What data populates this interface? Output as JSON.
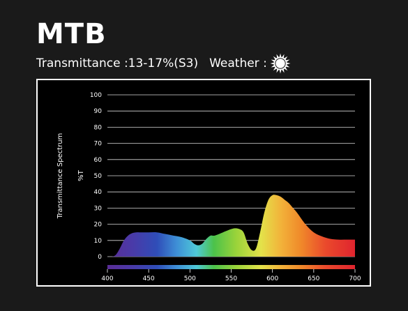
{
  "header": {
    "title": "MTB",
    "transmittance_label": "Transmittance :13-17%(S3)",
    "weather_label": "Weather :"
  },
  "icons": {
    "weather": "sun-icon"
  },
  "colors": {
    "background": "#1a1a1a",
    "panel": "#000000",
    "border": "#ffffff"
  },
  "chart_data": {
    "type": "area",
    "ylabel": "Transmittance Spectrum",
    "yunit": "%T",
    "xlim": [
      400,
      700
    ],
    "ylim": [
      0,
      100
    ],
    "yticks": [
      0,
      10,
      20,
      30,
      40,
      50,
      60,
      70,
      80,
      90,
      100
    ],
    "xticks": [
      400,
      450,
      500,
      550,
      600,
      650,
      700
    ],
    "grid": true,
    "series": [
      {
        "x": [
          400,
          405,
          410,
          415,
          420,
          425,
          430,
          435,
          440,
          450,
          460,
          470,
          480,
          490,
          500,
          505,
          510,
          515,
          520,
          525,
          530,
          540,
          550,
          555,
          560,
          565,
          570,
          575,
          580,
          585,
          590,
          595,
          600,
          605,
          610,
          615,
          620,
          625,
          630,
          640,
          650,
          660,
          670,
          680,
          690,
          700
        ],
        "y": [
          0,
          0,
          1,
          5,
          10,
          13,
          14.5,
          15,
          15,
          15,
          15,
          14,
          13,
          12,
          10,
          8,
          7,
          8,
          11,
          13,
          13,
          15,
          17,
          17.5,
          17,
          15,
          8,
          4,
          5,
          15,
          27,
          35,
          38,
          38,
          37,
          35,
          33,
          30,
          27,
          20,
          15,
          12.5,
          11,
          10.5,
          10.5,
          10.5
        ]
      }
    ]
  }
}
